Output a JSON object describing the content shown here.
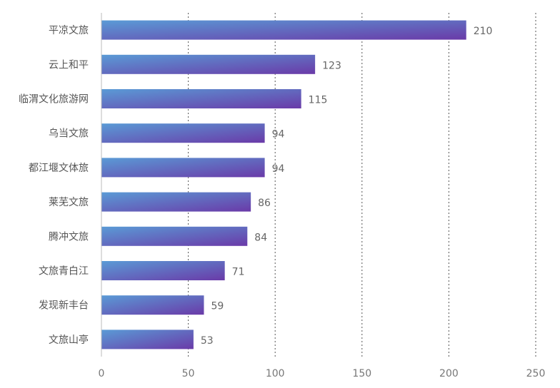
{
  "chart_data": {
    "type": "bar",
    "orientation": "horizontal",
    "categories": [
      "平凉文旅",
      "云上和平",
      "临渭文化旅游网",
      "乌当文旅",
      "都江堰文体旅",
      "莱芜文旅",
      "腾冲文旅",
      "文旅青白江",
      "发现新丰台",
      "文旅山亭"
    ],
    "values": [
      210,
      123,
      115,
      94,
      94,
      86,
      84,
      71,
      59,
      53
    ],
    "xlim": [
      0,
      250
    ],
    "xticks": [
      0,
      50,
      100,
      150,
      200,
      250
    ],
    "grid": "vertical dotted",
    "legend": "none",
    "colors": {
      "bar_start": "#5a9bd6",
      "bar_end": "#6a3aa8",
      "grid": "#555555",
      "axis": "#bbbbbb"
    }
  }
}
